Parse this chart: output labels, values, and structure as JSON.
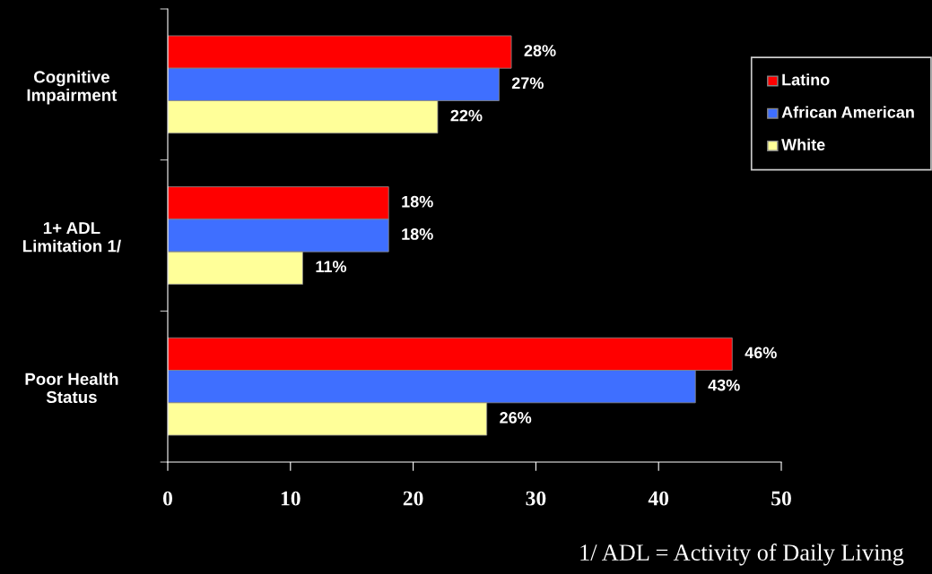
{
  "chart_data": {
    "type": "bar",
    "orientation": "horizontal",
    "categories": [
      "Cognitive\nImpairment",
      "1+ ADL\nLimitation 1/",
      "Poor Health\nStatus"
    ],
    "series": [
      {
        "name": "Latino",
        "color": "#ff0000",
        "values": [
          28,
          18,
          46
        ],
        "value_labels": [
          "28%",
          "18%",
          "46%"
        ]
      },
      {
        "name": "African American",
        "color": "#3f6fff",
        "values": [
          27,
          18,
          43
        ],
        "value_labels": [
          "27%",
          "18%",
          "43%"
        ]
      },
      {
        "name": "White",
        "color": "#ffff99",
        "values": [
          22,
          11,
          26
        ],
        "value_labels": [
          "22%",
          "11%",
          "26%"
        ]
      }
    ],
    "xlim": [
      0,
      50
    ],
    "xticks": [
      0,
      10,
      20,
      30,
      40,
      50
    ],
    "legend": "top right",
    "grid": false,
    "annotations": [
      "1/ ADL = Activity of Daily Living"
    ]
  }
}
